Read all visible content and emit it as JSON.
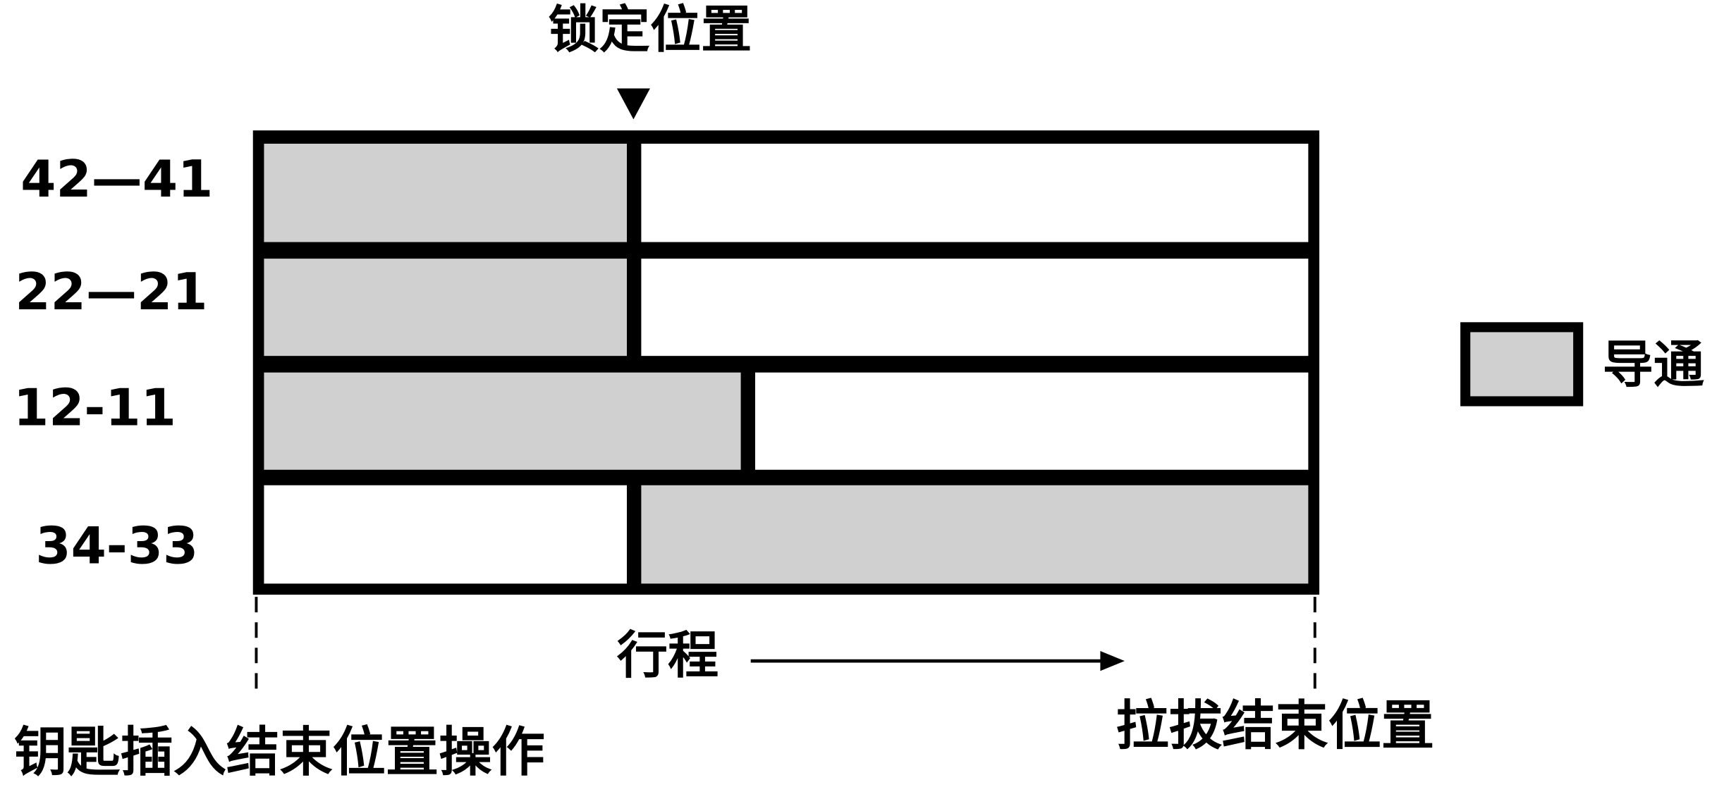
{
  "marker": {
    "label": "锁定位置"
  },
  "rows": [
    {
      "label": "42—41"
    },
    {
      "label": "22—21"
    },
    {
      "label": "12-11"
    },
    {
      "label": "34-33"
    }
  ],
  "legend": {
    "label": "导通"
  },
  "axis": {
    "label": "行程",
    "start_label": "钥匙插入结束位置操作",
    "end_label": "拉拔结束位置"
  }
}
